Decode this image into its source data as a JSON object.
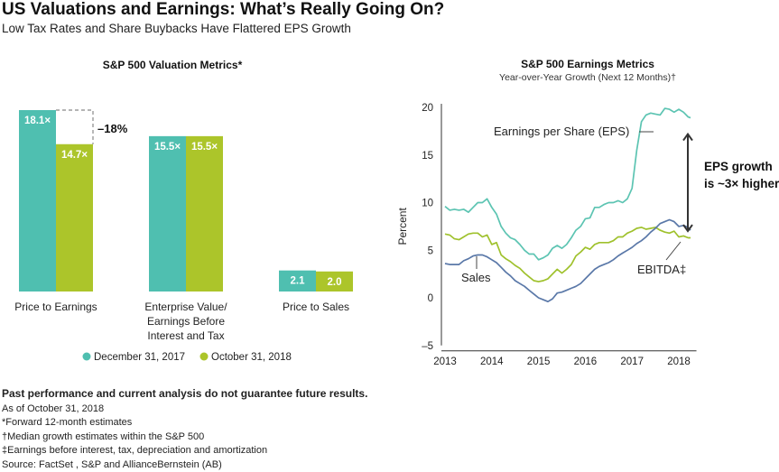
{
  "header": {
    "title": "US Valuations and Earnings: What’s Really Going On?",
    "subtitle": "Low Tax Rates and Share Buybacks Have Flattered EPS Growth"
  },
  "colors": {
    "teal": "#4fbfb0",
    "green": "#acc52a",
    "eps_line": "#5cc4b2",
    "ebitda_line": "#9fc12c",
    "sales_line": "#5a78a8"
  },
  "chart_data": [
    {
      "type": "bar",
      "title": "S&P 500 Valuation Metrics*",
      "categories": [
        "Price to Earnings",
        "Enterprise Value/ Earnings Before Interest and Tax",
        "Price to Sales"
      ],
      "category_lines": [
        [
          "Price to Earnings"
        ],
        [
          "Enterprise Value/",
          "Earnings Before",
          "Interest and Tax"
        ],
        [
          "Price to Sales"
        ]
      ],
      "series": [
        {
          "name": "December 31, 2017",
          "values": [
            18.1,
            15.5,
            2.1
          ],
          "labels": [
            "18.1×",
            "15.5×",
            "2.1"
          ],
          "color": "#4fbfb0"
        },
        {
          "name": "October 31, 2018",
          "values": [
            14.7,
            15.5,
            2.0
          ],
          "labels": [
            "14.7×",
            "15.5×",
            "2.0"
          ],
          "color": "#acc52a"
        }
      ],
      "annotation": "–18%",
      "legend_position": "bottom",
      "ylim": [
        0,
        18.1
      ]
    },
    {
      "type": "line",
      "title": "S&P 500 Earnings Metrics",
      "subtitle": "Year-over-Year Growth (Next 12 Months)†",
      "ylabel": "Percent",
      "ylim": [
        -5,
        20
      ],
      "yticks": [
        -5,
        0,
        5,
        10,
        15,
        20
      ],
      "xlim": [
        2013,
        2018.3
      ],
      "xticks": [
        2013,
        2014,
        2015,
        2016,
        2017,
        2018
      ],
      "grid": false,
      "series": [
        {
          "name": "Earnings per Share (EPS)",
          "color": "#5cc4b2",
          "x": [
            2013.0,
            2013.1,
            2013.2,
            2013.3,
            2013.4,
            2013.5,
            2013.6,
            2013.7,
            2013.8,
            2013.9,
            2014.0,
            2014.1,
            2014.2,
            2014.3,
            2014.4,
            2014.5,
            2014.6,
            2014.7,
            2014.8,
            2014.9,
            2015.0,
            2015.1,
            2015.2,
            2015.3,
            2015.4,
            2015.5,
            2015.6,
            2015.7,
            2015.8,
            2015.9,
            2016.0,
            2016.1,
            2016.2,
            2016.3,
            2016.4,
            2016.5,
            2016.6,
            2016.7,
            2016.8,
            2016.9,
            2017.0,
            2017.1,
            2017.2,
            2017.3,
            2017.4,
            2017.5,
            2017.6,
            2017.7,
            2017.8,
            2017.9,
            2018.0,
            2018.1,
            2018.2,
            2018.25
          ],
          "y": [
            9.6,
            9.2,
            9.3,
            9.2,
            9.3,
            9.0,
            9.5,
            10.0,
            10.0,
            10.4,
            9.5,
            8.8,
            7.5,
            6.8,
            6.3,
            6.1,
            5.6,
            5.0,
            4.6,
            4.6,
            4.0,
            4.2,
            4.5,
            5.2,
            5.5,
            5.2,
            5.6,
            6.3,
            7.1,
            7.5,
            8.3,
            8.4,
            9.5,
            9.5,
            9.8,
            10.0,
            10.0,
            10.2,
            10.0,
            10.4,
            11.5,
            15.5,
            18.5,
            19.2,
            19.4,
            19.3,
            19.2,
            19.9,
            19.8,
            19.5,
            19.8,
            19.5,
            19.0,
            18.9
          ]
        },
        {
          "name": "EBITDA‡",
          "color": "#9fc12c",
          "x": [
            2013.0,
            2013.1,
            2013.2,
            2013.3,
            2013.4,
            2013.5,
            2013.6,
            2013.7,
            2013.8,
            2013.9,
            2014.0,
            2014.1,
            2014.2,
            2014.3,
            2014.4,
            2014.5,
            2014.6,
            2014.7,
            2014.8,
            2014.9,
            2015.0,
            2015.1,
            2015.2,
            2015.3,
            2015.4,
            2015.5,
            2015.6,
            2015.7,
            2015.8,
            2015.9,
            2016.0,
            2016.1,
            2016.2,
            2016.3,
            2016.4,
            2016.5,
            2016.6,
            2016.7,
            2016.8,
            2016.9,
            2017.0,
            2017.1,
            2017.2,
            2017.3,
            2017.4,
            2017.5,
            2017.6,
            2017.7,
            2017.8,
            2017.9,
            2018.0,
            2018.1,
            2018.2,
            2018.25
          ],
          "y": [
            6.7,
            6.6,
            6.2,
            6.1,
            6.4,
            6.7,
            6.8,
            6.8,
            6.4,
            6.6,
            5.6,
            5.8,
            4.5,
            4.1,
            3.8,
            3.4,
            3.1,
            2.6,
            2.2,
            1.8,
            1.7,
            1.8,
            2.0,
            2.5,
            3.0,
            2.6,
            3.0,
            3.5,
            4.4,
            4.8,
            5.3,
            5.1,
            5.6,
            5.8,
            5.8,
            5.8,
            6.0,
            6.4,
            6.4,
            6.8,
            7.0,
            7.3,
            7.4,
            7.2,
            7.3,
            7.4,
            7.1,
            6.9,
            6.8,
            7.0,
            6.4,
            6.5,
            6.3,
            6.3
          ]
        },
        {
          "name": "Sales",
          "color": "#5a78a8",
          "x": [
            2013.0,
            2013.1,
            2013.2,
            2013.3,
            2013.4,
            2013.5,
            2013.6,
            2013.7,
            2013.8,
            2013.9,
            2014.0,
            2014.1,
            2014.2,
            2014.3,
            2014.4,
            2014.5,
            2014.6,
            2014.7,
            2014.8,
            2014.9,
            2015.0,
            2015.1,
            2015.2,
            2015.3,
            2015.4,
            2015.5,
            2015.6,
            2015.7,
            2015.8,
            2015.9,
            2016.0,
            2016.1,
            2016.2,
            2016.3,
            2016.4,
            2016.5,
            2016.6,
            2016.7,
            2016.8,
            2016.9,
            2017.0,
            2017.1,
            2017.2,
            2017.3,
            2017.4,
            2017.5,
            2017.6,
            2017.7,
            2017.8,
            2017.9,
            2018.0,
            2018.1,
            2018.2,
            2018.25
          ],
          "y": [
            3.6,
            3.5,
            3.5,
            3.5,
            3.9,
            4.1,
            4.4,
            4.5,
            4.5,
            4.3,
            4.0,
            3.7,
            3.2,
            2.7,
            2.3,
            1.8,
            1.5,
            1.2,
            0.8,
            0.4,
            0.0,
            -0.2,
            -0.4,
            -0.1,
            0.5,
            0.6,
            0.8,
            1.0,
            1.2,
            1.5,
            2.0,
            2.5,
            3.0,
            3.3,
            3.5,
            3.7,
            4.0,
            4.4,
            4.7,
            5.0,
            5.3,
            5.7,
            6.0,
            6.4,
            6.9,
            7.3,
            7.8,
            8.0,
            8.2,
            8.0,
            7.5,
            7.6,
            7.4,
            7.1
          ]
        }
      ],
      "annotation": "EPS growth is ~3× higher",
      "annotation_lines": [
        "EPS growth",
        "is ~3× higher"
      ]
    }
  ],
  "notes": {
    "disclaimer": "Past performance and current analysis do not guarantee future results.",
    "lines": [
      "As of October 31, 2018",
      "*Forward 12-month estimates",
      "†Median growth estimates within the S&P 500",
      "‡Earnings before interest, tax, depreciation and amortization",
      "Source: FactSet , S&P and AllianceBernstein (AB)"
    ]
  }
}
